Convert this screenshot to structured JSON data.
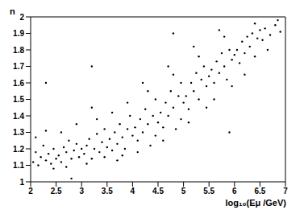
{
  "chart_data": {
    "type": "scatter",
    "x_label": "log₁₀(Eμ /GeV)",
    "y_label": "n",
    "color": "#000000",
    "marker": "point",
    "xlim": [
      2,
      7
    ],
    "xticks": [
      2,
      2.5,
      3,
      3.5,
      4,
      4.5,
      5,
      5.5,
      6,
      6.5,
      7
    ],
    "ylim": [
      1,
      2
    ],
    "yticks": [
      1,
      1.1,
      1.2,
      1.3,
      1.4,
      1.5,
      1.6,
      1.7,
      1.8,
      1.9,
      2
    ],
    "x": [
      2.05,
      2.1,
      2.15,
      2.2,
      2.25,
      2.3,
      2.35,
      2.4,
      2.45,
      2.5,
      2.1,
      2.3,
      2.45,
      2.55,
      2.6,
      2.65,
      2.7,
      2.75,
      2.8,
      2.85,
      2.9,
      2.95,
      3.0,
      2.6,
      2.9,
      2.7,
      3.05,
      3.1,
      3.15,
      3.2,
      3.25,
      3.3,
      3.35,
      3.4,
      3.45,
      3.5,
      3.1,
      3.3,
      3.45,
      3.2,
      3.55,
      3.6,
      3.65,
      3.7,
      3.75,
      3.8,
      3.85,
      3.9,
      3.95,
      4.0,
      3.6,
      3.8,
      3.9,
      3.7,
      4.05,
      4.1,
      4.15,
      4.2,
      4.25,
      4.3,
      4.35,
      4.4,
      4.45,
      4.5,
      4.1,
      4.3,
      4.45,
      4.2,
      4.55,
      4.6,
      4.65,
      4.7,
      4.75,
      4.8,
      4.85,
      4.9,
      4.95,
      5.0,
      4.6,
      4.8,
      4.95,
      4.7,
      5.05,
      5.1,
      5.15,
      5.2,
      5.25,
      5.3,
      5.35,
      5.4,
      5.45,
      5.5,
      5.1,
      5.3,
      5.45,
      5.2,
      5.55,
      5.6,
      5.65,
      5.7,
      5.75,
      5.8,
      5.85,
      5.9,
      5.95,
      6.0,
      5.6,
      5.8,
      5.95,
      5.7,
      6.05,
      6.1,
      6.15,
      6.2,
      6.25,
      6.3,
      6.35,
      6.4,
      6.45,
      6.5,
      6.2,
      6.4,
      6.55,
      6.6,
      6.7,
      6.8,
      6.9,
      6.65,
      6.85,
      2.3,
      3.2,
      4.8,
      2.8,
      5.9
    ],
    "values": [
      1.12,
      1.18,
      1.1,
      1.15,
      1.22,
      1.13,
      1.17,
      1.11,
      1.2,
      1.14,
      1.27,
      1.31,
      1.08,
      1.16,
      1.12,
      1.21,
      1.18,
      1.25,
      1.14,
      1.19,
      1.23,
      1.15,
      1.2,
      1.3,
      1.35,
      1.09,
      1.17,
      1.22,
      1.26,
      1.14,
      1.2,
      1.29,
      1.18,
      1.24,
      1.32,
      1.21,
      1.11,
      1.38,
      1.15,
      1.45,
      1.26,
      1.19,
      1.3,
      1.23,
      1.35,
      1.27,
      1.2,
      1.32,
      1.4,
      1.28,
      1.42,
      1.16,
      1.48,
      1.13,
      1.33,
      1.25,
      1.38,
      1.3,
      1.44,
      1.35,
      1.22,
      1.4,
      1.5,
      1.36,
      1.18,
      1.55,
      1.28,
      1.6,
      1.42,
      1.33,
      1.48,
      1.4,
      1.55,
      1.45,
      1.32,
      1.52,
      1.6,
      1.48,
      1.25,
      1.65,
      1.38,
      1.7,
      1.52,
      1.44,
      1.6,
      1.55,
      1.66,
      1.5,
      1.62,
      1.7,
      1.58,
      1.64,
      1.36,
      1.76,
      1.45,
      1.82,
      1.68,
      1.6,
      1.73,
      1.66,
      1.78,
      1.7,
      1.62,
      1.8,
      1.74,
      1.77,
      1.5,
      1.88,
      1.58,
      1.92,
      1.8,
      1.72,
      1.85,
      1.78,
      1.88,
      1.82,
      1.9,
      1.76,
      1.87,
      1.92,
      1.65,
      1.96,
      1.86,
      1.93,
      1.89,
      1.95,
      1.91,
      1.8,
      1.98,
      1.6,
      1.7,
      1.9,
      1.02,
      1.3
    ]
  }
}
